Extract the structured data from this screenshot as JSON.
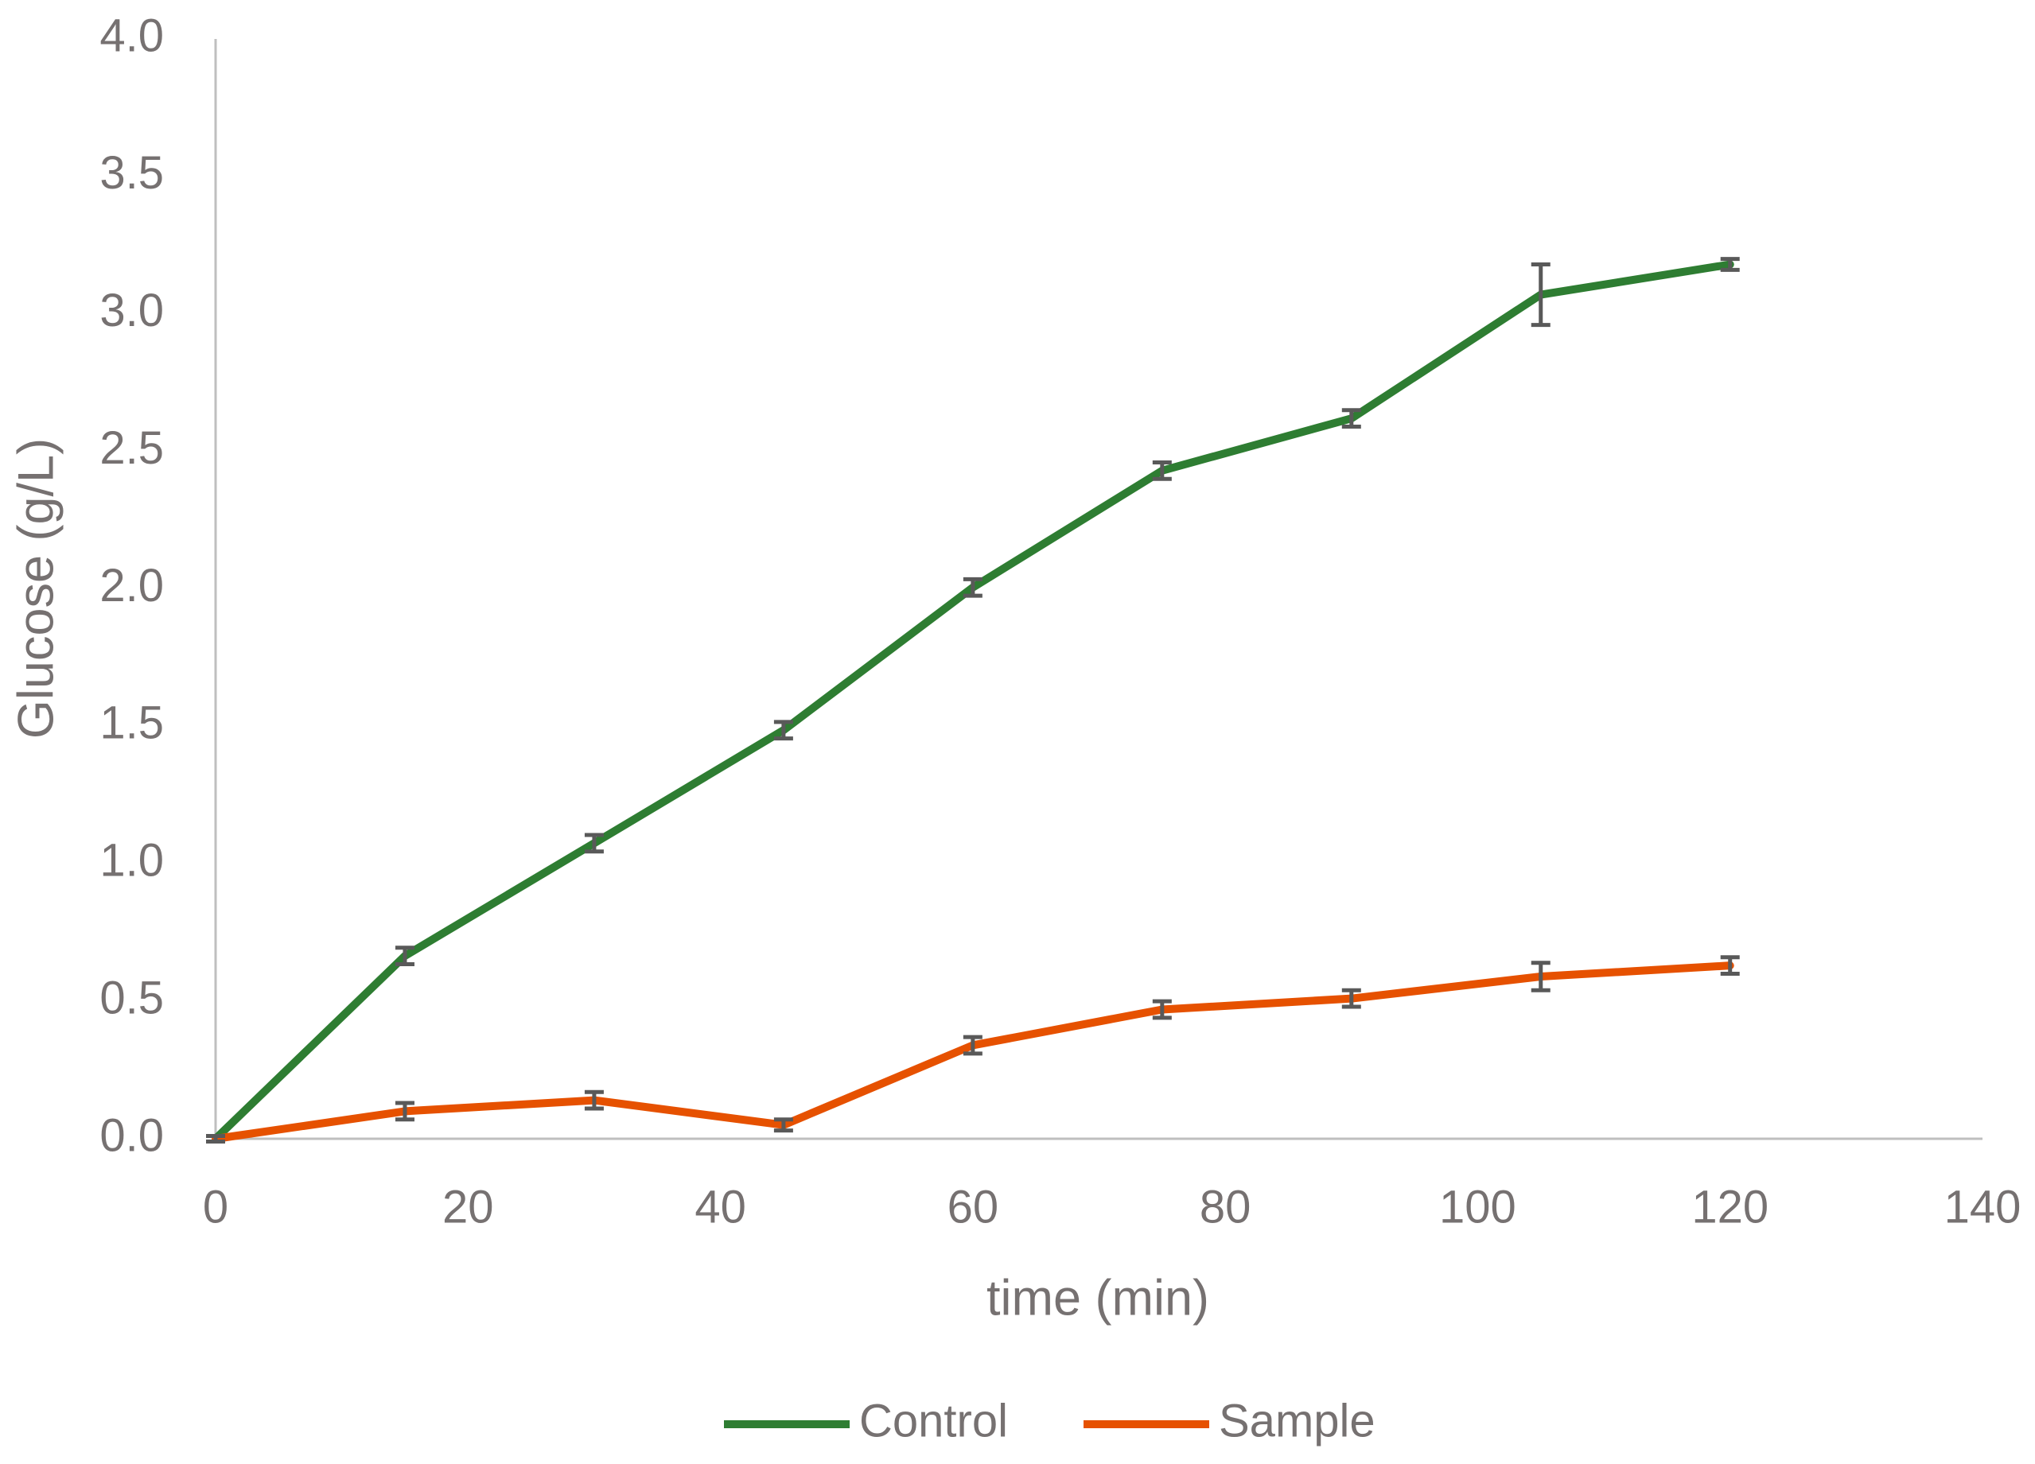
{
  "chart_data": {
    "type": "line",
    "x": [
      0,
      15,
      30,
      45,
      60,
      75,
      90,
      105,
      120
    ],
    "series": [
      {
        "name": "Control",
        "color": "#2e7d32",
        "values": [
          0,
          0.665,
          1.075,
          1.486,
          2.005,
          2.43,
          2.62,
          3.07,
          3.18
        ],
        "errors": [
          0.01,
          0.03,
          0.03,
          0.03,
          0.03,
          0.03,
          0.03,
          0.11,
          0.02
        ]
      },
      {
        "name": "Sample",
        "color": "#e65100",
        "values": [
          0,
          0.1,
          0.14,
          0.05,
          0.34,
          0.47,
          0.51,
          0.59,
          0.63
        ],
        "errors": [
          0.01,
          0.03,
          0.03,
          0.02,
          0.03,
          0.03,
          0.03,
          0.05,
          0.03
        ]
      }
    ],
    "xlabel": "time (min)",
    "ylabel": "Glucose (g/L)",
    "xlim": [
      0,
      140
    ],
    "xticks": [
      0,
      20,
      40,
      60,
      80,
      100,
      120,
      140
    ],
    "ylim": [
      0,
      4
    ],
    "yticks": [
      {
        "value": 0,
        "label": "0.0"
      },
      0.5,
      {
        "value": 1,
        "label": "1.0"
      },
      1.5,
      {
        "value": 2,
        "label": "2.0"
      },
      2.5,
      {
        "value": 3,
        "label": "3.0"
      },
      3.5,
      {
        "value": 4,
        "label": "4.0"
      }
    ],
    "grid": false,
    "legend": "bottom"
  }
}
